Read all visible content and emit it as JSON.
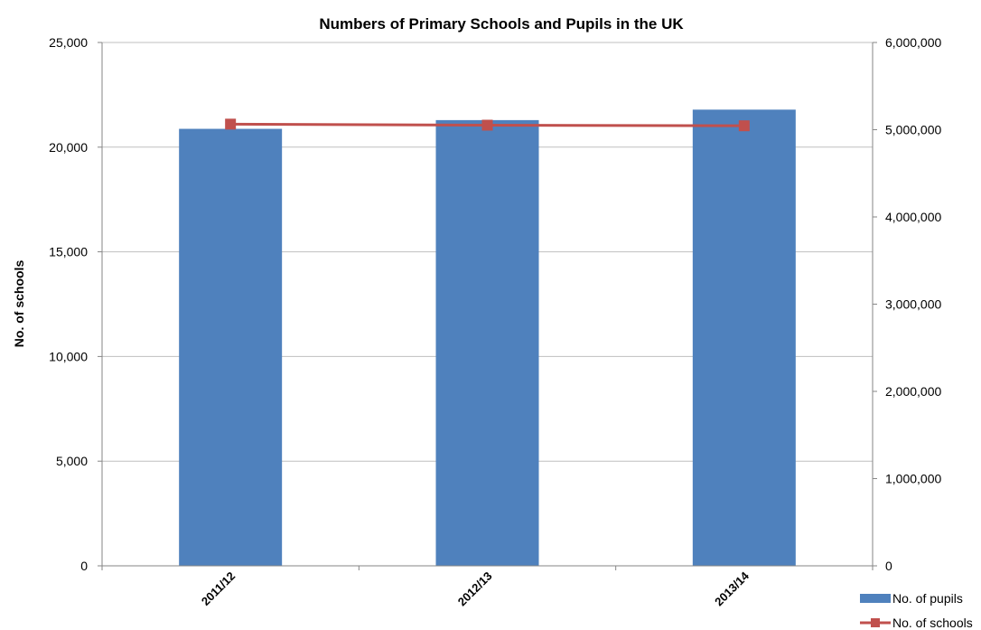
{
  "chart_data": {
    "type": "bar",
    "title": "Numbers of Primary Schools and Pupils in the UK",
    "xlabel": "",
    "ylabel": "No. of schools",
    "y2label": "",
    "categories": [
      "2011/12",
      "2012/13",
      "2013/14"
    ],
    "ylim": [
      0,
      25000
    ],
    "y2lim": [
      0,
      6000000
    ],
    "yticks": [
      "0",
      "5,000",
      "10,000",
      "15,000",
      "20,000",
      "25,000"
    ],
    "y2ticks": [
      "0",
      "1,000,000",
      "2,000,000",
      "3,000,000",
      "4,000,000",
      "5,000,000",
      "6,000,000"
    ],
    "grid": true,
    "legend_position": "bottom-right",
    "series": [
      {
        "name": "No. of pupils",
        "type": "bar",
        "axis": "right",
        "color": "#4F81BD",
        "values": [
          5010000,
          5110000,
          5230000
        ]
      },
      {
        "name": "No. of schools",
        "type": "line",
        "axis": "left",
        "color": "#C0504D",
        "marker": "square",
        "values": [
          21100,
          21050,
          21020
        ]
      }
    ]
  }
}
